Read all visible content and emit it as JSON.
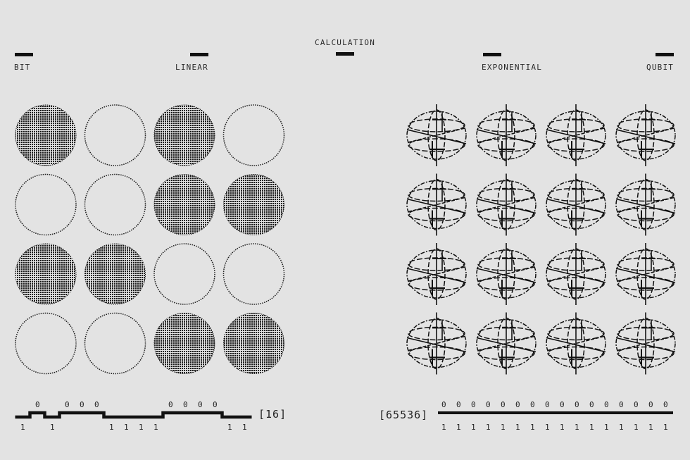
{
  "header": {
    "bit": "BIT",
    "linear": "LINEAR",
    "calculation": "CALCULATION",
    "exponential": "EXPONENTIAL",
    "qubit": "QUBIT"
  },
  "bits": {
    "grid_states": [
      [
        1,
        0,
        1,
        0
      ],
      [
        0,
        0,
        1,
        1
      ],
      [
        1,
        1,
        0,
        0
      ],
      [
        0,
        0,
        1,
        1
      ]
    ],
    "sequence": [
      1,
      0,
      1,
      0,
      0,
      0,
      1,
      1,
      1,
      1,
      0,
      0,
      0,
      0,
      1,
      1
    ],
    "count_label": "[16]"
  },
  "qubits": {
    "rows": 4,
    "cols": 4,
    "sequence_zeros": [
      "0",
      "0",
      "0",
      "0",
      "0",
      "0",
      "0",
      "0",
      "0",
      "0",
      "0",
      "0",
      "0",
      "0",
      "0",
      "0"
    ],
    "sequence_ones": [
      "1",
      "1",
      "1",
      "1",
      "1",
      "1",
      "1",
      "1",
      "1",
      "1",
      "1",
      "1",
      "1",
      "1",
      "1",
      "1"
    ],
    "count_label": "[65536]"
  },
  "colors": {
    "background": "#e3e3e3",
    "ink": "#111111"
  }
}
